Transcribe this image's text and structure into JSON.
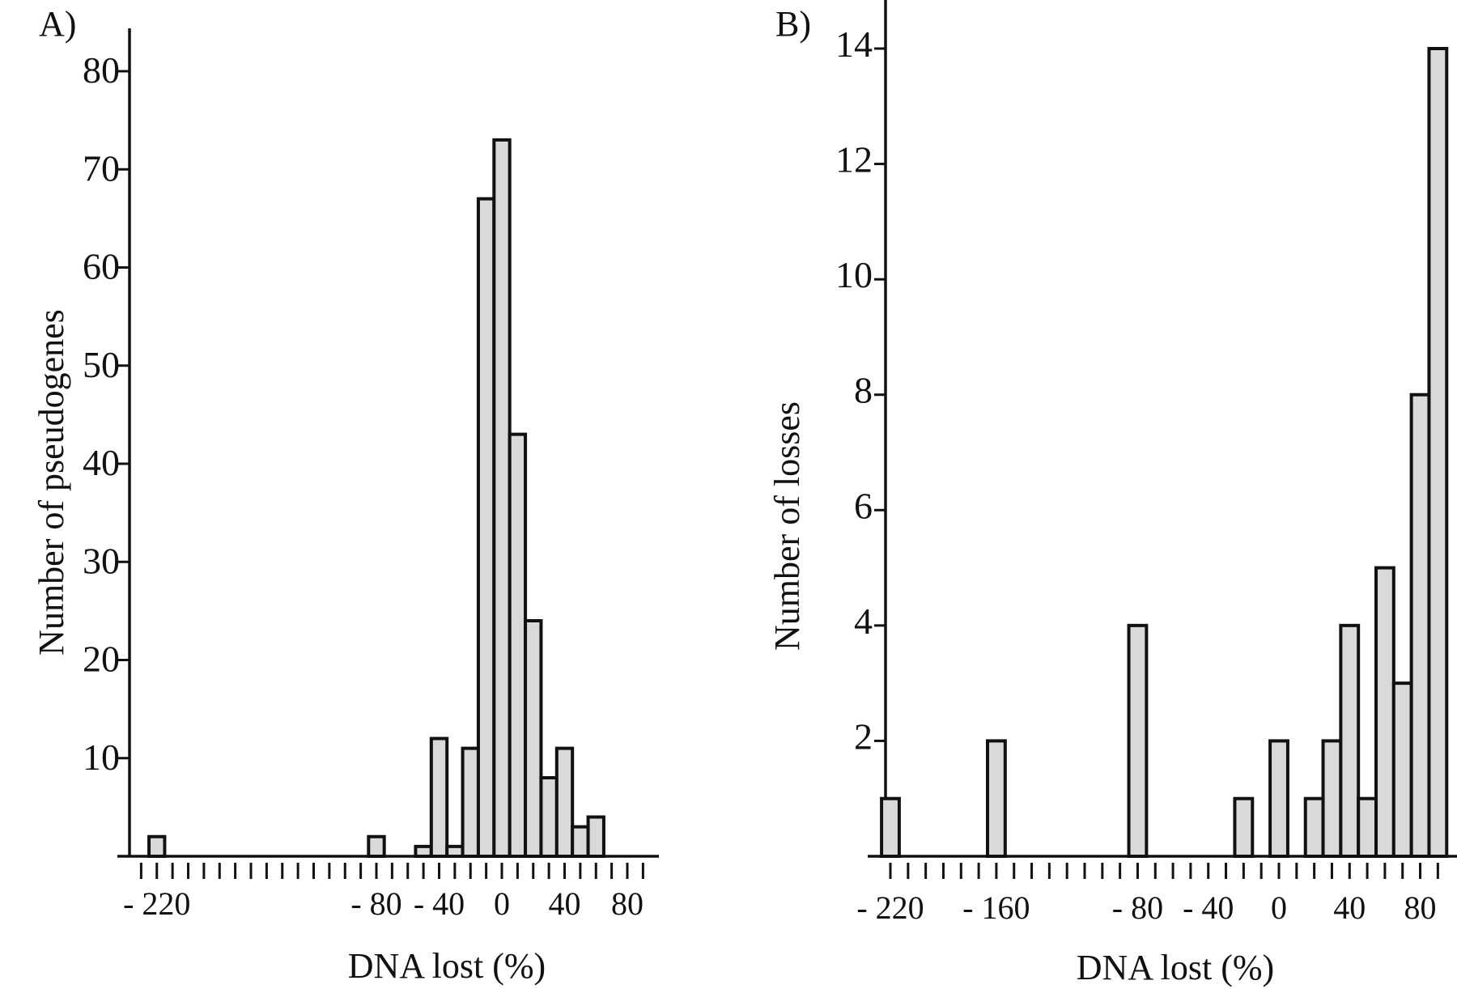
{
  "chart_data": [
    {
      "type": "bar",
      "panel": "A)",
      "title": "",
      "xlabel": "DNA lost (%)",
      "ylabel": "Number of pseudogenes",
      "ylim": [
        0,
        84
      ],
      "y_ticks": [
        10,
        20,
        30,
        40,
        50,
        60,
        70,
        80
      ],
      "xlim": [
        -240,
        100
      ],
      "x_tick_labels": [
        {
          "value": -220,
          "label": "- 220"
        },
        {
          "value": -80,
          "label": "- 80"
        },
        {
          "value": -40,
          "label": "- 40"
        },
        {
          "value": 0,
          "label": "0"
        },
        {
          "value": 40,
          "label": "40"
        },
        {
          "value": 80,
          "label": "80"
        }
      ],
      "bin_width": 10,
      "bin_centers": [
        -220,
        -80,
        -50,
        -40,
        -30,
        -20,
        -10,
        0,
        10,
        20,
        30,
        40,
        50,
        60
      ],
      "values": [
        2,
        2,
        1,
        12,
        1,
        11,
        67,
        73,
        43,
        24,
        8,
        11,
        3,
        4
      ],
      "grid": false
    },
    {
      "type": "bar",
      "panel": "B)",
      "title": "",
      "xlabel": "DNA lost (%)",
      "ylabel": "Number of losses",
      "ylim": [
        0,
        14.8
      ],
      "y_ticks": [
        2,
        4,
        6,
        8,
        10,
        12,
        14
      ],
      "xlim": [
        -230,
        100
      ],
      "x_tick_labels": [
        {
          "value": -220,
          "label": "- 220"
        },
        {
          "value": -160,
          "label": "- 160"
        },
        {
          "value": -80,
          "label": "- 80"
        },
        {
          "value": -40,
          "label": "- 40"
        },
        {
          "value": 0,
          "label": "0"
        },
        {
          "value": 40,
          "label": "40"
        },
        {
          "value": 80,
          "label": "80"
        }
      ],
      "bin_width": 10,
      "bin_centers": [
        -220,
        -160,
        -80,
        -20,
        0,
        20,
        30,
        40,
        50,
        60,
        70,
        80,
        90
      ],
      "values": [
        1,
        2,
        4,
        1,
        2,
        1,
        2,
        4,
        1,
        5,
        3,
        8,
        14
      ],
      "grid": false
    }
  ]
}
